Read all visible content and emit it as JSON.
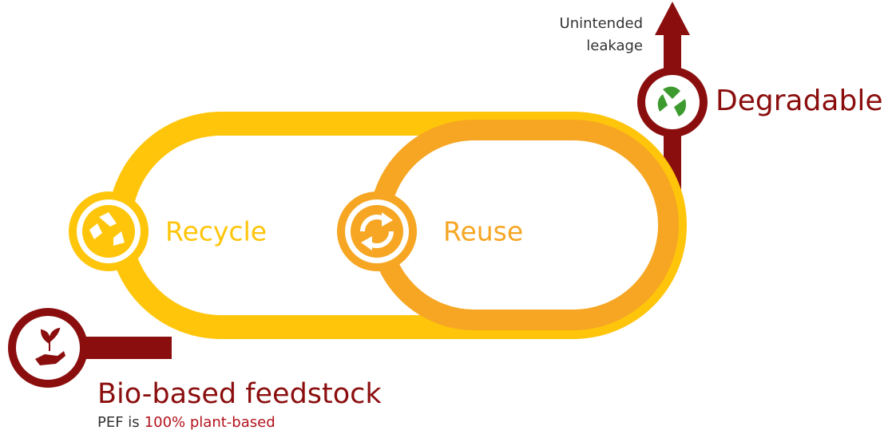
{
  "leakage": [
    "Unintended",
    "leakage"
  ],
  "degradable": "Degradable",
  "recycle": "Recycle",
  "reuse": "Reuse",
  "feedstock": {
    "title": "Bio-based feedstock",
    "note_prefix": "PEF is",
    "note_highlight": "100% plant-based"
  }
}
